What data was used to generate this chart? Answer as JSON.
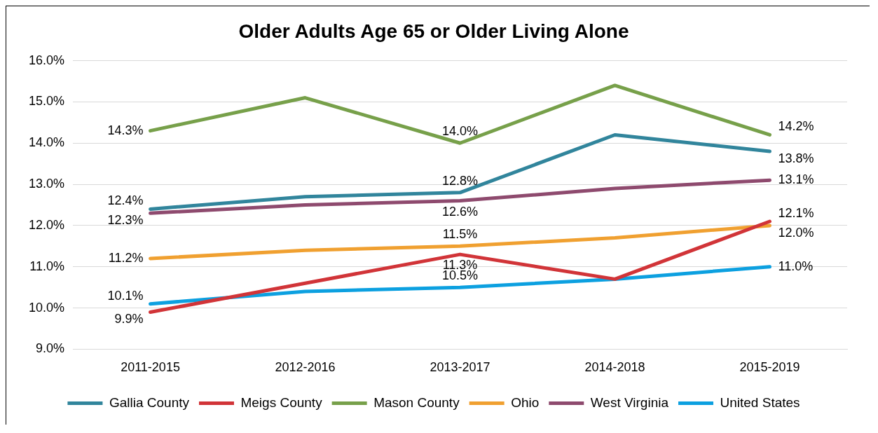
{
  "chart_data": {
    "type": "line",
    "title": "Older Adults Age 65 or Older Living Alone",
    "categories": [
      "2011-2015",
      "2012-2016",
      "2013-2017",
      "2014-2018",
      "2015-2019"
    ],
    "ylim": [
      9,
      16
    ],
    "yticks": [
      {
        "value": 9,
        "label": "9.0%"
      },
      {
        "value": 10,
        "label": "10.0%"
      },
      {
        "value": 11,
        "label": "11.0%"
      },
      {
        "value": 12,
        "label": "12.0%"
      },
      {
        "value": 13,
        "label": "13.0%"
      },
      {
        "value": 14,
        "label": "14.0%"
      },
      {
        "value": 15,
        "label": "15.0%"
      },
      {
        "value": 16,
        "label": "16.0%"
      }
    ],
    "grid": "y",
    "legend": "bottom",
    "marker": "none",
    "line_style": "solid",
    "series": [
      {
        "name": "Gallia County",
        "color": "#31859c",
        "values": [
          12.4,
          12.7,
          12.8,
          14.2,
          13.8
        ],
        "value_labels": [
          "12.4%",
          null,
          "12.8%",
          null,
          "13.8%"
        ]
      },
      {
        "name": "Meigs County",
        "color": "#d13438",
        "values": [
          9.9,
          10.6,
          11.3,
          10.7,
          12.1
        ],
        "value_labels": [
          "9.9%",
          null,
          "11.3%",
          null,
          "12.1%"
        ]
      },
      {
        "name": "Mason County",
        "color": "#77a04a",
        "values": [
          14.3,
          15.1,
          14.0,
          15.4,
          14.2
        ],
        "value_labels": [
          "14.3%",
          null,
          "14.0%",
          null,
          "14.2%"
        ]
      },
      {
        "name": "Ohio",
        "color": "#f0a030",
        "values": [
          11.2,
          11.4,
          11.5,
          11.7,
          12.0
        ],
        "value_labels": [
          "11.2%",
          null,
          "11.5%",
          null,
          "12.0%"
        ]
      },
      {
        "name": "West Virginia",
        "color": "#8e4a6e",
        "values": [
          12.3,
          12.5,
          12.6,
          12.9,
          13.1
        ],
        "value_labels": [
          "12.3%",
          null,
          "12.6%",
          null,
          "13.1%"
        ]
      },
      {
        "name": "United States",
        "color": "#0ca0e0",
        "values": [
          10.1,
          10.4,
          10.5,
          10.7,
          11.0
        ],
        "value_labels": [
          "10.1%",
          null,
          "10.5%",
          null,
          "11.0%"
        ]
      }
    ]
  }
}
